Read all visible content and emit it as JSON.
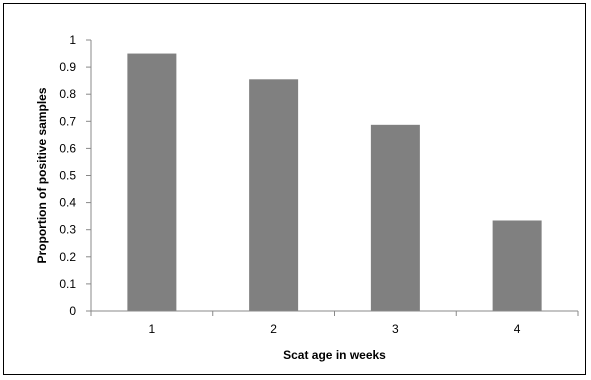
{
  "chart_data": {
    "type": "bar",
    "title": "",
    "xlabel": "Scat age in weeks",
    "ylabel": "Proportion of positive samples",
    "categories": [
      "1",
      "2",
      "3",
      "4"
    ],
    "values": [
      0.95,
      0.855,
      0.687,
      0.334
    ],
    "ylim": [
      0,
      1
    ],
    "yticks": [
      "0",
      "0.1",
      "0.2",
      "0.3",
      "0.4",
      "0.5",
      "0.6",
      "0.7",
      "0.8",
      "0.9",
      "1"
    ],
    "grid": false,
    "legend": "none",
    "bar_color": "#808080"
  }
}
